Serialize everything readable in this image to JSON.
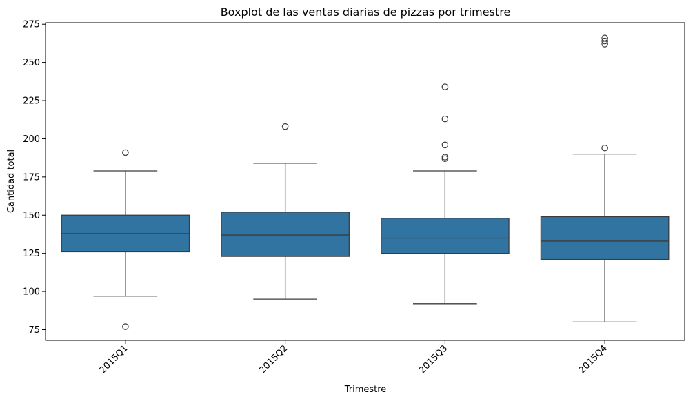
{
  "chart_data": {
    "type": "box",
    "title": "Boxplot de las ventas diarias de pizzas por trimestre",
    "xlabel": "Trimestre",
    "ylabel": "Cantidad total",
    "ylim": [
      68,
      276
    ],
    "yticks": [
      75,
      100,
      125,
      150,
      175,
      200,
      225,
      250,
      275
    ],
    "grid": false,
    "box_color": "#3274a1",
    "line_color": "#3c3c3c",
    "categories": [
      "2015Q1",
      "2015Q2",
      "2015Q3",
      "2015Q4"
    ],
    "boxes": [
      {
        "category": "2015Q1",
        "whisker_low": 97,
        "q1": 126,
        "median": 138,
        "q3": 150,
        "whisker_high": 179,
        "outliers": [
          191,
          77
        ]
      },
      {
        "category": "2015Q2",
        "whisker_low": 95,
        "q1": 123,
        "median": 137,
        "q3": 152,
        "whisker_high": 184,
        "outliers": [
          208
        ]
      },
      {
        "category": "2015Q3",
        "whisker_low": 92,
        "q1": 125,
        "median": 135,
        "q3": 148,
        "whisker_high": 179,
        "outliers": [
          234,
          213,
          196,
          188,
          187
        ]
      },
      {
        "category": "2015Q4",
        "whisker_low": 80,
        "q1": 121,
        "median": 133,
        "q3": 149,
        "whisker_high": 190,
        "outliers": [
          266,
          264,
          262,
          194
        ]
      }
    ]
  }
}
